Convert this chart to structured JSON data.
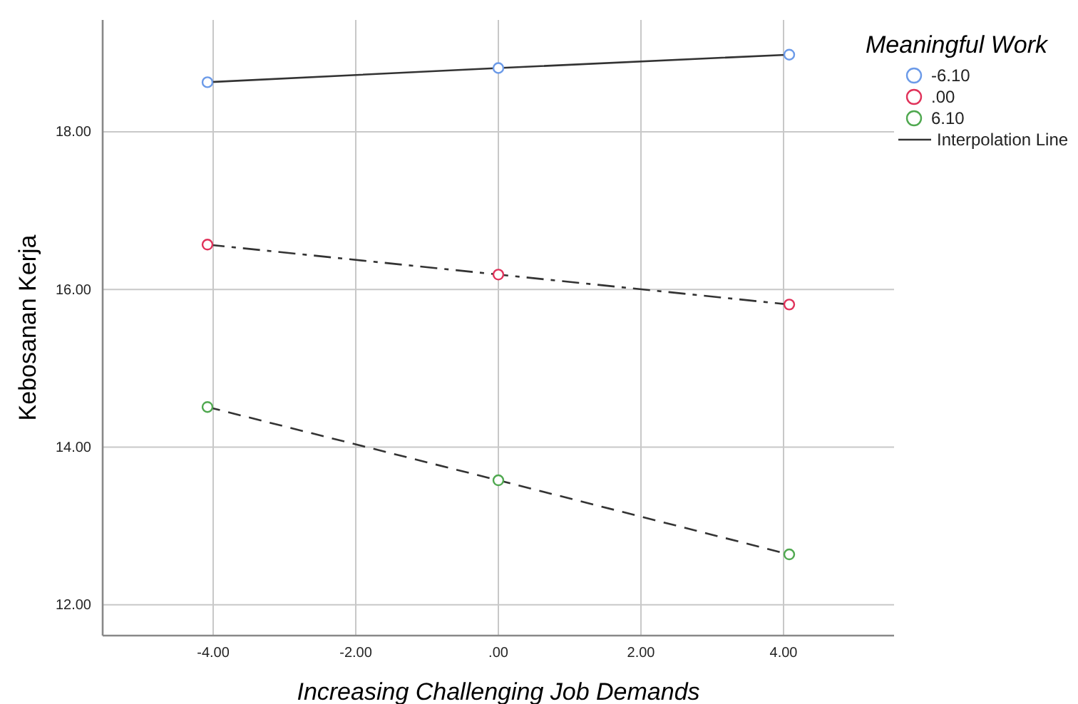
{
  "chart_data": {
    "type": "line",
    "xlabel": "Increasing Challenging Job Demands",
    "ylabel": "Kebosanan Kerja",
    "legend_title": "Meaningful Work",
    "legend": "top right",
    "grid": true,
    "marker": "circle",
    "xlim": [
      -5.55,
      5.55
    ],
    "xticks": [
      {
        "value": -4,
        "label": "-4.00"
      },
      {
        "value": -2,
        "label": "-2.00"
      },
      {
        "value": 0,
        "label": ".00"
      },
      {
        "value": 2,
        "label": "2.00"
      },
      {
        "value": 4,
        "label": "4.00"
      }
    ],
    "ylim": [
      11.61,
      19.42
    ],
    "yticks": [
      {
        "value": 12,
        "label": "12.00"
      },
      {
        "value": 14,
        "label": "14.00"
      },
      {
        "value": 16,
        "label": "16.00"
      },
      {
        "value": 18,
        "label": "18.00"
      }
    ],
    "x": [
      -4.08,
      0,
      4.08
    ],
    "series": [
      {
        "name": "-6.10",
        "color": "#6b9ae8",
        "line_style": "solid",
        "values": [
          18.63,
          18.81,
          18.98
        ]
      },
      {
        "name": ".00",
        "color": "#e0325a",
        "line_style": "dashdot",
        "values": [
          16.57,
          16.19,
          15.81
        ]
      },
      {
        "name": "6.10",
        "color": "#4fa84f",
        "line_style": "dashed",
        "values": [
          14.51,
          13.58,
          12.64
        ]
      }
    ],
    "annotations": [
      "Interpolation Line"
    ]
  }
}
